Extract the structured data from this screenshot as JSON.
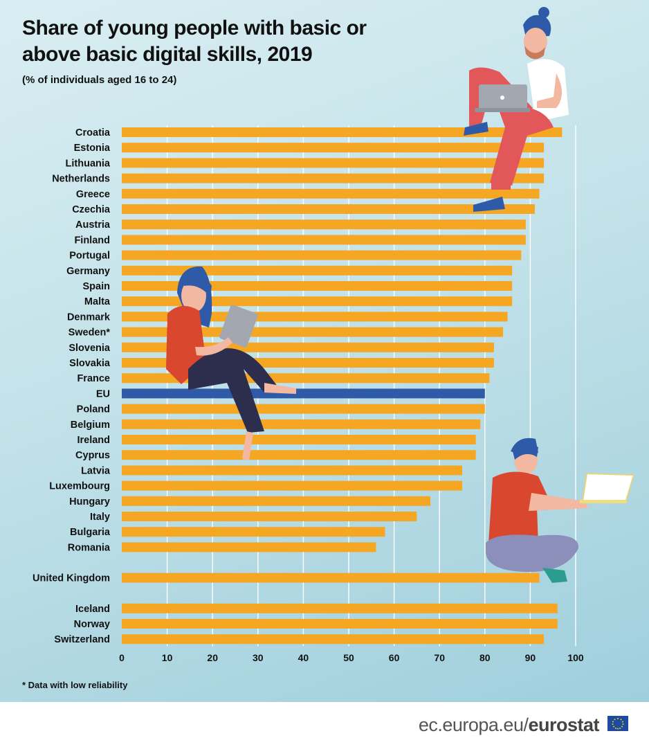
{
  "header": {
    "title": "Share of young people with basic or above basic digital skills, 2019",
    "subtitle": "(% of individuals aged 16 to 24)"
  },
  "footnote": "* Data with low reliability",
  "footer": {
    "site": "ec.europa.eu/",
    "brand": "eurostat"
  },
  "colors": {
    "bar": "#f5a623",
    "eu_bar": "#2e5aa8",
    "grid": "#ffffff",
    "background": "#c8e5ec"
  },
  "illustrations": [
    "man-with-laptop-illustration",
    "woman-with-laptop-illustration",
    "seated-man-with-laptop-illustration"
  ],
  "chart_data": {
    "type": "bar",
    "orientation": "horizontal",
    "title": "Share of young people with basic or above basic digital skills, 2019",
    "subtitle": "(% of individuals aged 16 to 24)",
    "xlim": [
      0,
      100
    ],
    "xticks": [
      0,
      10,
      20,
      30,
      40,
      50,
      60,
      70,
      80,
      90,
      100
    ],
    "grid": true,
    "groups": [
      {
        "categories": [
          "Croatia",
          "Estonia",
          "Lithuania",
          "Netherlands",
          "Greece",
          "Czechia",
          "Austria",
          "Finland",
          "Portugal",
          "Germany",
          "Spain",
          "Malta",
          "Denmark",
          "Sweden*",
          "Slovenia",
          "Slovakia",
          "France",
          "EU",
          "Poland",
          "Belgium",
          "Ireland",
          "Cyprus",
          "Latvia",
          "Luxembourg",
          "Hungary",
          "Italy",
          "Bulgaria",
          "Romania"
        ],
        "values": [
          97,
          93,
          93,
          93,
          92,
          91,
          89,
          89,
          88,
          86,
          86,
          86,
          85,
          84,
          82,
          82,
          81,
          80,
          80,
          79,
          78,
          78,
          75,
          75,
          68,
          65,
          58,
          56
        ]
      },
      {
        "categories": [
          "United Kingdom"
        ],
        "values": [
          92
        ]
      },
      {
        "categories": [
          "Iceland",
          "Norway",
          "Switzerland"
        ],
        "values": [
          96,
          96,
          93
        ]
      }
    ],
    "highlight": "EU"
  }
}
